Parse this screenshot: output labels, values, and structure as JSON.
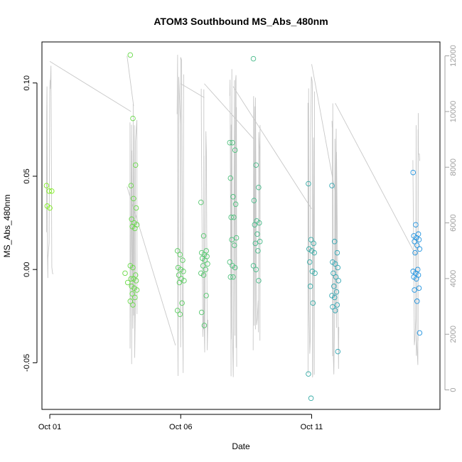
{
  "chart_data": {
    "type": "scatter",
    "title": "ATOM3 Southbound MS_Abs_480nm",
    "xlabel": "Date",
    "ylabel": "MS_Abs_480nm",
    "x_ticks": [
      "Oct 01",
      "Oct 06",
      "Oct 11"
    ],
    "x_tick_days": [
      1,
      6,
      11
    ],
    "xlim": [
      0.7,
      15.9
    ],
    "ylim": [
      -0.075,
      0.122
    ],
    "y_ticks": [
      -0.05,
      0.0,
      0.05,
      0.1
    ],
    "y_tick_labels": [
      "-0.05",
      "0.00",
      "0.05",
      "0.10"
    ],
    "y2_ticks": [
      0,
      2000,
      4000,
      6000,
      8000,
      10000,
      12000
    ],
    "y2_lim": [
      -700,
      12500
    ],
    "grid": false,
    "colors": {
      "points_start": "#7cee1a",
      "points_end": "#1a8ee6",
      "depth_line": "#c8c8c8",
      "frame": "#000000",
      "right_axis": "#a0a0a0"
    },
    "points": {
      "groups": [
        {
          "day": 1.0,
          "values": [
            0.045,
            0.042,
            0.042,
            0.034,
            0.033
          ]
        },
        {
          "day": 4.0,
          "values": [
            -0.002,
            -0.007
          ]
        },
        {
          "day": 4.2,
          "values": [
            0.115,
            0.081,
            0.056,
            0.045,
            0.038,
            0.033,
            0.027,
            0.025,
            0.024,
            0.023,
            0.022,
            0.002,
            0.001,
            -0.003,
            -0.005,
            -0.005,
            -0.006,
            -0.009,
            -0.01,
            -0.011,
            -0.013,
            -0.015,
            -0.017,
            -0.019
          ]
        },
        {
          "day": 6.0,
          "values": [
            0.01,
            0.008,
            0.005,
            0.001,
            0.0,
            -0.001,
            -0.003,
            -0.005,
            -0.006,
            -0.007,
            -0.018,
            -0.022,
            -0.024
          ]
        },
        {
          "day": 6.9,
          "values": [
            0.036,
            0.018,
            0.01,
            0.009,
            0.008,
            0.007,
            0.006,
            0.005,
            0.003,
            0.002,
            0.0,
            -0.002,
            -0.003,
            -0.014,
            -0.023,
            -0.03
          ]
        },
        {
          "day": 8.0,
          "values": [
            0.068,
            0.068,
            0.064,
            0.049,
            0.039,
            0.035,
            0.028,
            0.028,
            0.017,
            0.016,
            0.013,
            0.004,
            0.002,
            0.001,
            -0.004,
            -0.004
          ]
        },
        {
          "day": 8.9,
          "values": [
            0.113,
            0.056,
            0.044,
            0.037,
            0.026,
            0.025,
            0.024,
            0.019,
            0.015,
            0.014,
            0.01,
            0.002,
            0.0,
            -0.006
          ]
        },
        {
          "day": 11.0,
          "values": [
            0.046,
            0.016,
            0.014,
            0.011,
            0.01,
            0.009,
            0.004,
            -0.001,
            -0.002,
            -0.009,
            -0.018,
            -0.056,
            -0.069
          ]
        },
        {
          "day": 11.9,
          "values": [
            0.045,
            0.015,
            0.009,
            0.004,
            0.003,
            0.001,
            -0.002,
            -0.004,
            -0.006,
            -0.009,
            -0.012,
            -0.014,
            -0.015,
            -0.019,
            -0.02,
            -0.022,
            -0.044
          ]
        },
        {
          "day": 15.0,
          "values": [
            0.052,
            0.024,
            0.019,
            0.018,
            0.017,
            0.016,
            0.015,
            0.013,
            0.011,
            0.009,
            0.0,
            -0.001,
            -0.002,
            -0.003,
            -0.004,
            -0.005,
            -0.01,
            -0.011,
            -0.017,
            -0.034
          ]
        }
      ]
    },
    "depth_series": {
      "label_axis": "right",
      "casts": [
        {
          "day": 1.0,
          "min": 3700,
          "max": 11800
        },
        {
          "day": 4.2,
          "min": 600,
          "max": 10500
        },
        {
          "day": 6.0,
          "min": 500,
          "max": 12100
        },
        {
          "day": 6.9,
          "min": 300,
          "max": 11000
        },
        {
          "day": 8.0,
          "min": 400,
          "max": 11600
        },
        {
          "day": 8.9,
          "min": 700,
          "max": 11100
        },
        {
          "day": 11.0,
          "min": 300,
          "max": 11700
        },
        {
          "day": 11.9,
          "min": 400,
          "max": 10300
        },
        {
          "day": 15.0,
          "min": 700,
          "max": 10100
        }
      ],
      "transits": [
        [
          1.0,
          11800,
          4.1,
          10000
        ],
        [
          3.95,
          12000,
          4.2,
          10200
        ],
        [
          3.95,
          7300,
          5.8,
          1600
        ],
        [
          6.0,
          11000,
          6.9,
          10500
        ],
        [
          6.9,
          11000,
          8.8,
          9000
        ],
        [
          8.0,
          10900,
          11.0,
          6500
        ],
        [
          11.0,
          11700,
          11.9,
          7100
        ],
        [
          11.9,
          10300,
          15.0,
          4800
        ]
      ]
    }
  }
}
